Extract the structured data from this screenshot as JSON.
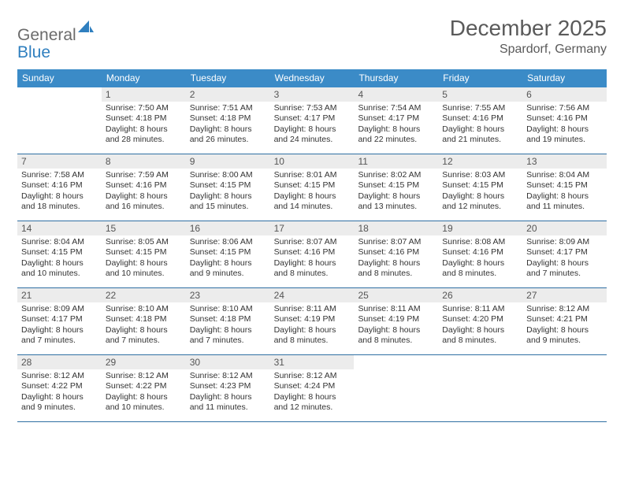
{
  "logo": {
    "general": "General",
    "blue": "Blue"
  },
  "title": "December 2025",
  "location": "Spardorf, Germany",
  "day_headers": [
    "Sunday",
    "Monday",
    "Tuesday",
    "Wednesday",
    "Thursday",
    "Friday",
    "Saturday"
  ],
  "colors": {
    "header_bg": "#3b8bc7",
    "row_border": "#2f6fa3",
    "daynum_bg": "#ececec",
    "text": "#333333",
    "title_text": "#5a5a5a",
    "logo_gray": "#6b6b6b",
    "logo_blue": "#2f7fbf"
  },
  "weeks": [
    [
      {
        "n": "",
        "sunrise": "",
        "sunset": "",
        "daylight": ""
      },
      {
        "n": "1",
        "sunrise": "Sunrise: 7:50 AM",
        "sunset": "Sunset: 4:18 PM",
        "daylight": "Daylight: 8 hours and 28 minutes."
      },
      {
        "n": "2",
        "sunrise": "Sunrise: 7:51 AM",
        "sunset": "Sunset: 4:18 PM",
        "daylight": "Daylight: 8 hours and 26 minutes."
      },
      {
        "n": "3",
        "sunrise": "Sunrise: 7:53 AM",
        "sunset": "Sunset: 4:17 PM",
        "daylight": "Daylight: 8 hours and 24 minutes."
      },
      {
        "n": "4",
        "sunrise": "Sunrise: 7:54 AM",
        "sunset": "Sunset: 4:17 PM",
        "daylight": "Daylight: 8 hours and 22 minutes."
      },
      {
        "n": "5",
        "sunrise": "Sunrise: 7:55 AM",
        "sunset": "Sunset: 4:16 PM",
        "daylight": "Daylight: 8 hours and 21 minutes."
      },
      {
        "n": "6",
        "sunrise": "Sunrise: 7:56 AM",
        "sunset": "Sunset: 4:16 PM",
        "daylight": "Daylight: 8 hours and 19 minutes."
      }
    ],
    [
      {
        "n": "7",
        "sunrise": "Sunrise: 7:58 AM",
        "sunset": "Sunset: 4:16 PM",
        "daylight": "Daylight: 8 hours and 18 minutes."
      },
      {
        "n": "8",
        "sunrise": "Sunrise: 7:59 AM",
        "sunset": "Sunset: 4:16 PM",
        "daylight": "Daylight: 8 hours and 16 minutes."
      },
      {
        "n": "9",
        "sunrise": "Sunrise: 8:00 AM",
        "sunset": "Sunset: 4:15 PM",
        "daylight": "Daylight: 8 hours and 15 minutes."
      },
      {
        "n": "10",
        "sunrise": "Sunrise: 8:01 AM",
        "sunset": "Sunset: 4:15 PM",
        "daylight": "Daylight: 8 hours and 14 minutes."
      },
      {
        "n": "11",
        "sunrise": "Sunrise: 8:02 AM",
        "sunset": "Sunset: 4:15 PM",
        "daylight": "Daylight: 8 hours and 13 minutes."
      },
      {
        "n": "12",
        "sunrise": "Sunrise: 8:03 AM",
        "sunset": "Sunset: 4:15 PM",
        "daylight": "Daylight: 8 hours and 12 minutes."
      },
      {
        "n": "13",
        "sunrise": "Sunrise: 8:04 AM",
        "sunset": "Sunset: 4:15 PM",
        "daylight": "Daylight: 8 hours and 11 minutes."
      }
    ],
    [
      {
        "n": "14",
        "sunrise": "Sunrise: 8:04 AM",
        "sunset": "Sunset: 4:15 PM",
        "daylight": "Daylight: 8 hours and 10 minutes."
      },
      {
        "n": "15",
        "sunrise": "Sunrise: 8:05 AM",
        "sunset": "Sunset: 4:15 PM",
        "daylight": "Daylight: 8 hours and 10 minutes."
      },
      {
        "n": "16",
        "sunrise": "Sunrise: 8:06 AM",
        "sunset": "Sunset: 4:15 PM",
        "daylight": "Daylight: 8 hours and 9 minutes."
      },
      {
        "n": "17",
        "sunrise": "Sunrise: 8:07 AM",
        "sunset": "Sunset: 4:16 PM",
        "daylight": "Daylight: 8 hours and 8 minutes."
      },
      {
        "n": "18",
        "sunrise": "Sunrise: 8:07 AM",
        "sunset": "Sunset: 4:16 PM",
        "daylight": "Daylight: 8 hours and 8 minutes."
      },
      {
        "n": "19",
        "sunrise": "Sunrise: 8:08 AM",
        "sunset": "Sunset: 4:16 PM",
        "daylight": "Daylight: 8 hours and 8 minutes."
      },
      {
        "n": "20",
        "sunrise": "Sunrise: 8:09 AM",
        "sunset": "Sunset: 4:17 PM",
        "daylight": "Daylight: 8 hours and 7 minutes."
      }
    ],
    [
      {
        "n": "21",
        "sunrise": "Sunrise: 8:09 AM",
        "sunset": "Sunset: 4:17 PM",
        "daylight": "Daylight: 8 hours and 7 minutes."
      },
      {
        "n": "22",
        "sunrise": "Sunrise: 8:10 AM",
        "sunset": "Sunset: 4:18 PM",
        "daylight": "Daylight: 8 hours and 7 minutes."
      },
      {
        "n": "23",
        "sunrise": "Sunrise: 8:10 AM",
        "sunset": "Sunset: 4:18 PM",
        "daylight": "Daylight: 8 hours and 7 minutes."
      },
      {
        "n": "24",
        "sunrise": "Sunrise: 8:11 AM",
        "sunset": "Sunset: 4:19 PM",
        "daylight": "Daylight: 8 hours and 8 minutes."
      },
      {
        "n": "25",
        "sunrise": "Sunrise: 8:11 AM",
        "sunset": "Sunset: 4:19 PM",
        "daylight": "Daylight: 8 hours and 8 minutes."
      },
      {
        "n": "26",
        "sunrise": "Sunrise: 8:11 AM",
        "sunset": "Sunset: 4:20 PM",
        "daylight": "Daylight: 8 hours and 8 minutes."
      },
      {
        "n": "27",
        "sunrise": "Sunrise: 8:12 AM",
        "sunset": "Sunset: 4:21 PM",
        "daylight": "Daylight: 8 hours and 9 minutes."
      }
    ],
    [
      {
        "n": "28",
        "sunrise": "Sunrise: 8:12 AM",
        "sunset": "Sunset: 4:22 PM",
        "daylight": "Daylight: 8 hours and 9 minutes."
      },
      {
        "n": "29",
        "sunrise": "Sunrise: 8:12 AM",
        "sunset": "Sunset: 4:22 PM",
        "daylight": "Daylight: 8 hours and 10 minutes."
      },
      {
        "n": "30",
        "sunrise": "Sunrise: 8:12 AM",
        "sunset": "Sunset: 4:23 PM",
        "daylight": "Daylight: 8 hours and 11 minutes."
      },
      {
        "n": "31",
        "sunrise": "Sunrise: 8:12 AM",
        "sunset": "Sunset: 4:24 PM",
        "daylight": "Daylight: 8 hours and 12 minutes."
      },
      {
        "n": "",
        "sunrise": "",
        "sunset": "",
        "daylight": ""
      },
      {
        "n": "",
        "sunrise": "",
        "sunset": "",
        "daylight": ""
      },
      {
        "n": "",
        "sunrise": "",
        "sunset": "",
        "daylight": ""
      }
    ]
  ]
}
